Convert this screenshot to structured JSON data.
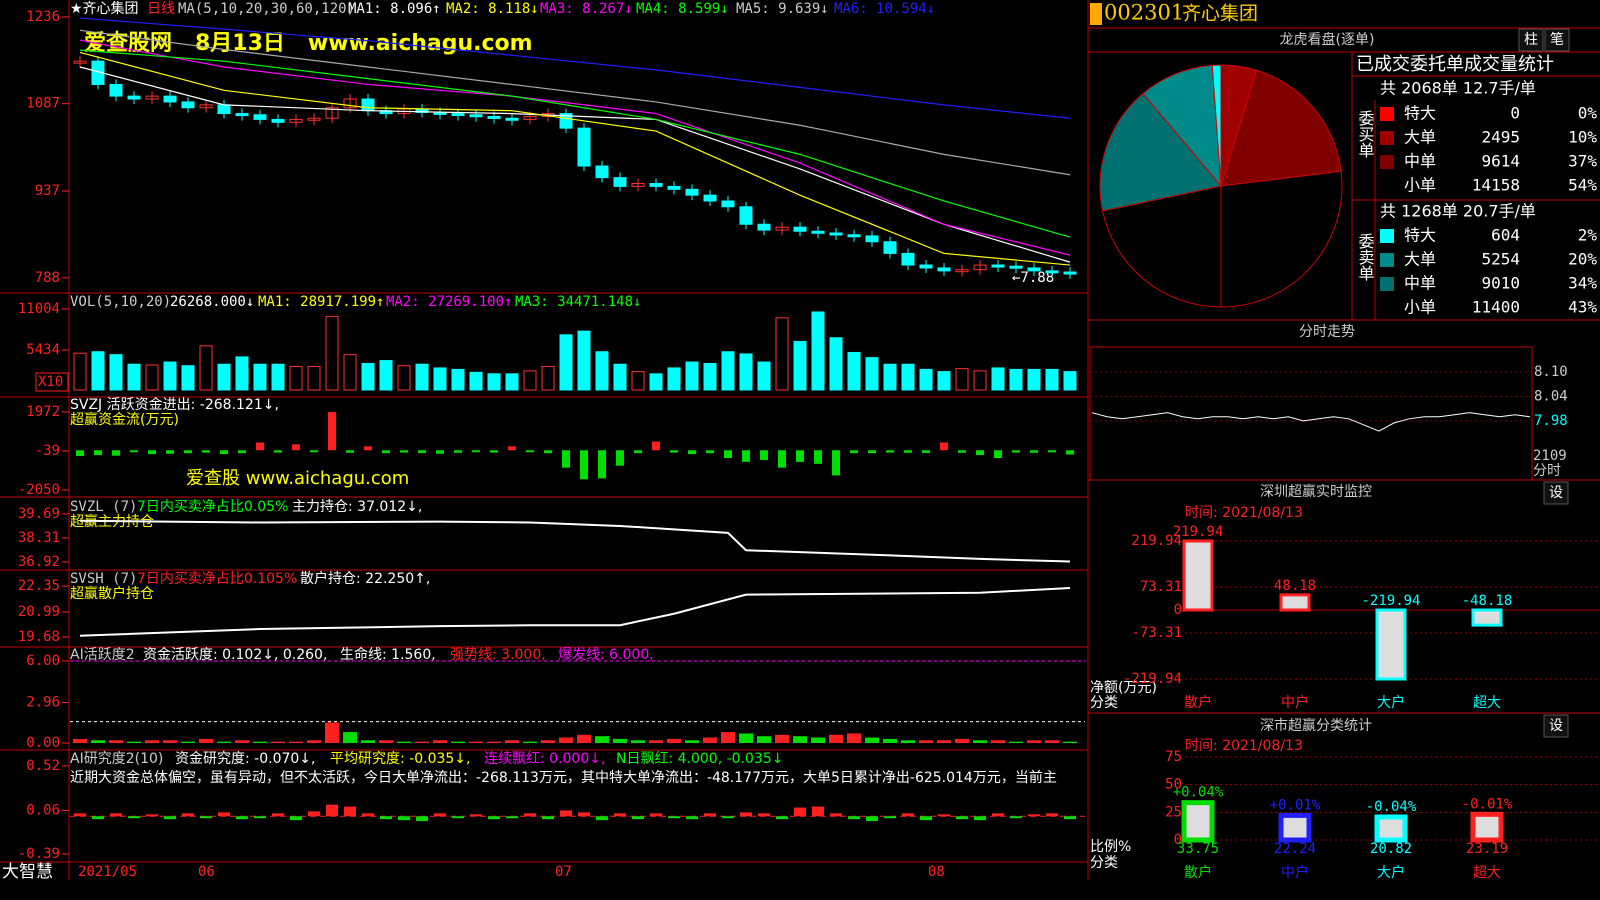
{
  "main": {
    "name": "★齐心集团",
    "period": "日线",
    "ma": "MA(5,10,20,30,60,120)",
    "ma_values": [
      "MA1: 8.096↑",
      "MA2: 8.118↓",
      "MA3: 8.267↓",
      "MA4: 8.599↓",
      "MA5: 9.639↓",
      "MA6: 10.594↓"
    ],
    "watermark": "爱查股网   8月13日   www.aichagu.com",
    "annotation": "←7.88",
    "ylim": [
      762,
      1265
    ],
    "yticks": [
      1236,
      1087,
      937,
      788
    ],
    "closes": [
      1160,
      1120,
      1100,
      1095,
      1100,
      1090,
      1080,
      1085,
      1070,
      1068,
      1060,
      1055,
      1060,
      1062,
      1080,
      1095,
      1075,
      1070,
      1078,
      1072,
      1070,
      1068,
      1065,
      1062,
      1060,
      1065,
      1070,
      1045,
      980,
      960,
      945,
      950,
      945,
      940,
      930,
      920,
      910,
      880,
      870,
      875,
      868,
      865,
      862,
      860,
      850,
      830,
      810,
      805,
      800,
      802,
      810,
      808,
      805,
      800,
      798,
      795
    ],
    "ma_x": [
      0,
      8,
      16,
      24,
      32,
      40,
      48,
      55
    ],
    "ma_lines": [
      {
        "color": "#ffffff",
        "values": [
          1150,
          1085,
          1075,
          1070,
          1060,
          975,
          880,
          815
        ]
      },
      {
        "color": "#ffff00",
        "values": [
          1175,
          1110,
          1080,
          1075,
          1040,
          930,
          830,
          810
        ]
      },
      {
        "color": "#ff00ff",
        "values": [
          1196,
          1150,
          1120,
          1100,
          1070,
          985,
          880,
          827
        ]
      },
      {
        "color": "#00ff00",
        "values": [
          1179,
          1160,
          1130,
          1100,
          1060,
          1000,
          920,
          858
        ]
      },
      {
        "color": "#aaaaaa",
        "values": [
          1213,
          1180,
          1150,
          1120,
          1090,
          1050,
          1000,
          965
        ]
      },
      {
        "color": "#2020ff",
        "values": [
          1234,
          1215,
          1195,
          1170,
          1145,
          1115,
          1085,
          1062
        ]
      }
    ]
  },
  "vol": {
    "title": "VOL(5,10,20)",
    "current": "26268.000↓",
    "ma_values": [
      "MA1: 28917.199↑",
      "MA2: 27269.100↑",
      "MA3: 34471.148↓"
    ],
    "unit": "X10",
    "ylim": [
      0,
      13180
    ],
    "yticks": [
      11004,
      5434
    ],
    "values": [
      5000,
      5200,
      4800,
      3500,
      3400,
      3800,
      3300,
      6000,
      3500,
      4500,
      3500,
      3500,
      3200,
      3200,
      10000,
      4800,
      3600,
      4000,
      3300,
      3500,
      3000,
      2800,
      2400,
      2200,
      2200,
      2600,
      3200,
      7500,
      8000,
      5200,
      3500,
      2500,
      2200,
      3000,
      3800,
      3600,
      5200,
      4900,
      3800,
      9800,
      6600,
      10600,
      7100,
      5100,
      4400,
      3500,
      3500,
      2800,
      2500,
      2900,
      2600,
      3000,
      2800,
      2800,
      2800,
      2500
    ]
  },
  "svzj": {
    "title": "SVZJ  活跃资金进出: -268.121↓,",
    "subtitle": "超赢资金流(万元)",
    "watermark": "爱查股 www.aichagu.com",
    "ylim": [
      -2411,
      2746
    ],
    "yticks": [
      1972,
      -39,
      -2050
    ],
    "values": [
      -300,
      -250,
      -280,
      -100,
      -200,
      -180,
      -150,
      -120,
      -200,
      -150,
      400,
      -120,
      300,
      -100,
      1972,
      -130,
      200,
      -150,
      -120,
      -140,
      -180,
      -130,
      -100,
      -120,
      200,
      -100,
      -150,
      -900,
      -1500,
      -1450,
      -800,
      -150,
      450,
      -120,
      -200,
      -150,
      -400,
      -600,
      -500,
      -900,
      -600,
      -700,
      -1300,
      -150,
      -150,
      -120,
      -130,
      -140,
      400,
      -130,
      -250,
      -400,
      -120,
      -130,
      -110,
      -220
    ]
  },
  "svzl": {
    "title": "SVZL (7)",
    "ratio": "7日内买卖净占比0.05%",
    "hold": "主力持仓: 37.012↓,",
    "subtitle": "超赢主力持仓",
    "ylim": [
      36.46,
      40.67
    ],
    "yticks": [
      39.69,
      38.31,
      36.92
    ],
    "x": [
      0,
      10,
      20,
      25,
      30,
      36,
      37,
      45,
      50,
      55
    ],
    "values": [
      39.3,
      39.2,
      39.25,
      39.2,
      39.0,
      38.6,
      37.6,
      37.3,
      37.1,
      36.95
    ]
  },
  "svsh": {
    "title": "SVSH (7)",
    "ratio": "7日内买卖净占比0.105%",
    "hold": "散户持仓: 22.250↑,",
    "subtitle": "超赢散户持仓",
    "ylim": [
      19.16,
      23.19
    ],
    "yticks": [
      22.35,
      20.99,
      19.68
    ],
    "x": [
      0,
      10,
      20,
      25,
      30,
      33,
      37,
      50,
      55
    ],
    "values": [
      19.75,
      20.1,
      20.25,
      20.3,
      20.3,
      20.9,
      21.9,
      22.0,
      22.25
    ]
  },
  "act": {
    "title": "AI活跃度2",
    "act": "资金活跃度: 0.102↓, 0.260,",
    "life": "生命线: 1.560,",
    "strong": "强势线: 3.000,",
    "burst": "爆发线: 6.000,",
    "ylim": [
      -0.51,
      7.02
    ],
    "yticks": [
      {
        "value": 6,
        "label": "6.00"
      },
      2.96,
      {
        "value": 0,
        "label": "0.00"
      }
    ],
    "lines": [
      {
        "value": 6,
        "color": "#ff00ff"
      },
      {
        "value": 1.56,
        "color": "#ffffff"
      }
    ],
    "values": [
      0.3,
      0.2,
      0.2,
      0.1,
      0.2,
      0.2,
      0.1,
      0.3,
      0.1,
      0.2,
      0.1,
      0.1,
      0.1,
      0.2,
      1.5,
      0.8,
      0.2,
      0.2,
      0.1,
      0.1,
      0.2,
      0.1,
      0.1,
      0.1,
      0.2,
      0.1,
      0.2,
      0.4,
      0.6,
      0.5,
      0.3,
      0.2,
      0.2,
      0.3,
      0.2,
      0.4,
      0.8,
      0.7,
      0.5,
      0.6,
      0.5,
      0.4,
      0.6,
      0.7,
      0.4,
      0.3,
      0.2,
      0.2,
      0.2,
      0.3,
      0.2,
      0.2,
      0.1,
      0.2,
      0.2,
      0.1
    ]
  },
  "res": {
    "title": "AI研究度2(10)",
    "res": "资金研究度: -0.070↓,",
    "avg": "平均研究度: -0.035↓,",
    "red": "连续飘红: 0.000↓,",
    "nred": "N日飘红: 4.000, -0.035↓",
    "text": "近期大资金总体偏空，虽有异动，但不太活跃，今日大单净流出：-268.113万元，其中特大单净流出：-48.177万元，大单5日累计净出-625.014万元，当前主",
    "ylim": [
      -0.473,
      0.685
    ],
    "yticks": [
      0.52,
      0.06,
      -0.39
    ],
    "values": [
      0.03,
      -0.03,
      0.03,
      -0.02,
      0.02,
      -0.03,
      0.03,
      -0.02,
      0.04,
      -0.03,
      -0.02,
      0.03,
      -0.04,
      0.05,
      0.12,
      0.1,
      0.03,
      -0.03,
      -0.04,
      -0.05,
      0.03,
      -0.02,
      0.02,
      -0.03,
      -0.02,
      0.03,
      -0.03,
      0.06,
      0.04,
      -0.04,
      0.03,
      -0.03,
      0.03,
      -0.02,
      -0.03,
      0.03,
      -0.02,
      0.04,
      0.03,
      -0.03,
      0.09,
      0.1,
      0.03,
      -0.03,
      -0.05,
      -0.02,
      0.03,
      -0.04,
      0.02,
      -0.03,
      -0.04,
      0.03,
      -0.02,
      0.02,
      0.03,
      -0.03
    ]
  },
  "footer": {
    "brand": "大智慧",
    "dates": [
      "2021/05",
      "06",
      "07",
      "08"
    ]
  },
  "stock": {
    "code": "002301",
    "name": "齐心集团"
  },
  "lhkp": {
    "title": "龙虎看盘(逐单)",
    "buttons": [
      "柱",
      "笔"
    ],
    "heading": "已成交委托单成交量统计",
    "buy": {
      "summary": "共 2068单 12.7手/单",
      "label": "委买单",
      "rows": [
        {
          "name": "特大",
          "count": 0,
          "pct": "0%",
          "color": "#ff0000"
        },
        {
          "name": "大单",
          "count": 2495,
          "pct": "10%",
          "color": "#a00000"
        },
        {
          "name": "中单",
          "count": 9614,
          "pct": "37%",
          "color": "#800000"
        },
        {
          "name": "小单",
          "count": 14158,
          "pct": "54%",
          "color": "#000000"
        }
      ]
    },
    "sell": {
      "summary": "共 1268单 20.7手/单",
      "label": "委卖单",
      "rows": [
        {
          "name": "特大",
          "count": 604,
          "pct": "2%",
          "color": "#00ffff"
        },
        {
          "name": "大单",
          "count": 5254,
          "pct": "20%",
          "color": "#008a8a"
        },
        {
          "name": "中单",
          "count": 9010,
          "pct": "34%",
          "color": "#007070"
        },
        {
          "name": "小单",
          "count": 11400,
          "pct": "43%",
          "color": "#000000"
        }
      ]
    }
  },
  "fenshi": {
    "title": "分时走势",
    "ylim": [
      7.835,
      8.161
    ],
    "yticks": [
      {
        "value": 8.1,
        "label": "8.10"
      },
      8.04,
      7.98
    ],
    "vol_label": "2109",
    "period": "分时",
    "values": [
      8.0,
      7.99,
      7.985,
      7.99,
      7.995,
      8.0,
      7.99,
      7.985,
      7.99,
      7.99,
      7.985,
      7.99,
      7.985,
      7.99,
      7.98,
      7.985,
      7.99,
      7.985,
      7.97,
      7.955,
      7.975,
      7.985,
      7.99,
      7.99,
      7.995,
      8.0,
      7.995,
      7.99,
      7.995,
      7.99
    ]
  },
  "monitor": {
    "title": "深圳超赢实时监控",
    "button": "设",
    "time": "时间: 2021/08/13",
    "ylabel": "净额(万元)",
    "xlabel": "分类",
    "ylim": [
      -219.94,
      219.94
    ],
    "yticks": [
      219.94,
      73.31,
      0,
      -73.31,
      -219.94
    ],
    "categories": [
      "散户",
      "中户",
      "大户",
      "超大"
    ],
    "values": [
      219.94,
      48.18,
      -219.94,
      -48.18
    ]
  },
  "stats": {
    "title": "深市超赢分类统计",
    "button": "设",
    "time": "时间: 2021/08/13",
    "ylabel": "比例%",
    "xlabel": "分类",
    "ylim": [
      0,
      75
    ],
    "yticks": [
      75,
      50,
      25,
      0
    ],
    "categories": [
      "散户",
      "中户",
      "大户",
      "超大"
    ],
    "changes": [
      "+0.04%",
      "+0.01%",
      "-0.04%",
      "-0.01%"
    ],
    "colors": [
      "#00dd00",
      "#2020ff",
      "#00ffff",
      "#ff2020"
    ],
    "values": [
      33.75,
      22.24,
      20.82,
      23.19
    ]
  }
}
